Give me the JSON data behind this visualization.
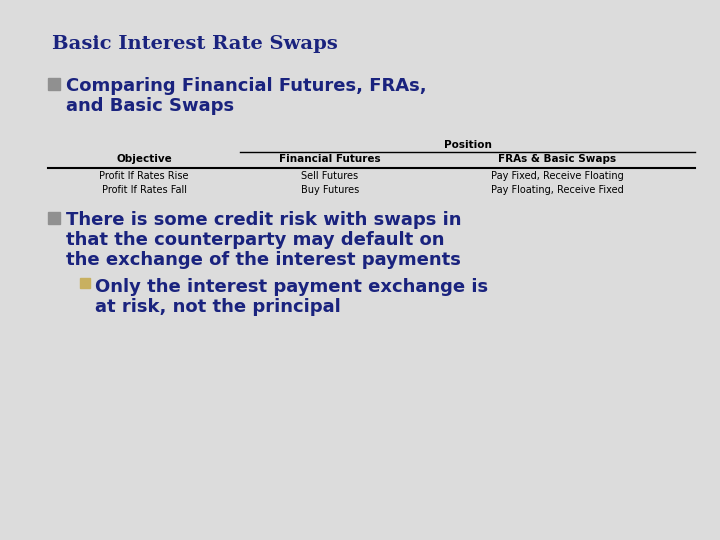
{
  "title": "Basic Interest Rate Swaps",
  "title_color": "#1a237e",
  "title_fontsize": 14,
  "bg_color": "#dcdcdc",
  "bullet1_line1": "Comparing Financial Futures, FRAs,",
  "bullet1_line2": "and Basic Swaps",
  "bullet1_color": "#1a237e",
  "bullet1_fontsize": 13,
  "bullet1_marker_color": "#909090",
  "table_header_top": "Position",
  "table_cols": [
    "Objective",
    "Financial Futures",
    "FRAs & Basic Swaps"
  ],
  "table_rows": [
    [
      "Profit If Rates Rise",
      "Sell Futures",
      "Pay Fixed, Receive Floating"
    ],
    [
      "Profit If Rates Fall",
      "Buy Futures",
      "Pay Floating, Receive Fixed"
    ]
  ],
  "table_header_color": "#000000",
  "table_text_color": "#000000",
  "table_header_fontsize": 7.5,
  "table_body_fontsize": 7.0,
  "bullet2_line1": "There is some credit risk with swaps in",
  "bullet2_line2": "that the counterparty may default on",
  "bullet2_line3": "the exchange of the interest payments",
  "bullet2_color": "#1a237e",
  "bullet2_fontsize": 13,
  "bullet2_marker_color": "#909090",
  "bullet3_line1": "Only the interest payment exchange is",
  "bullet3_line2": "at risk, not the principal",
  "bullet3_color": "#1a237e",
  "bullet3_fontsize": 13,
  "bullet3_marker_color": "#c8b060"
}
